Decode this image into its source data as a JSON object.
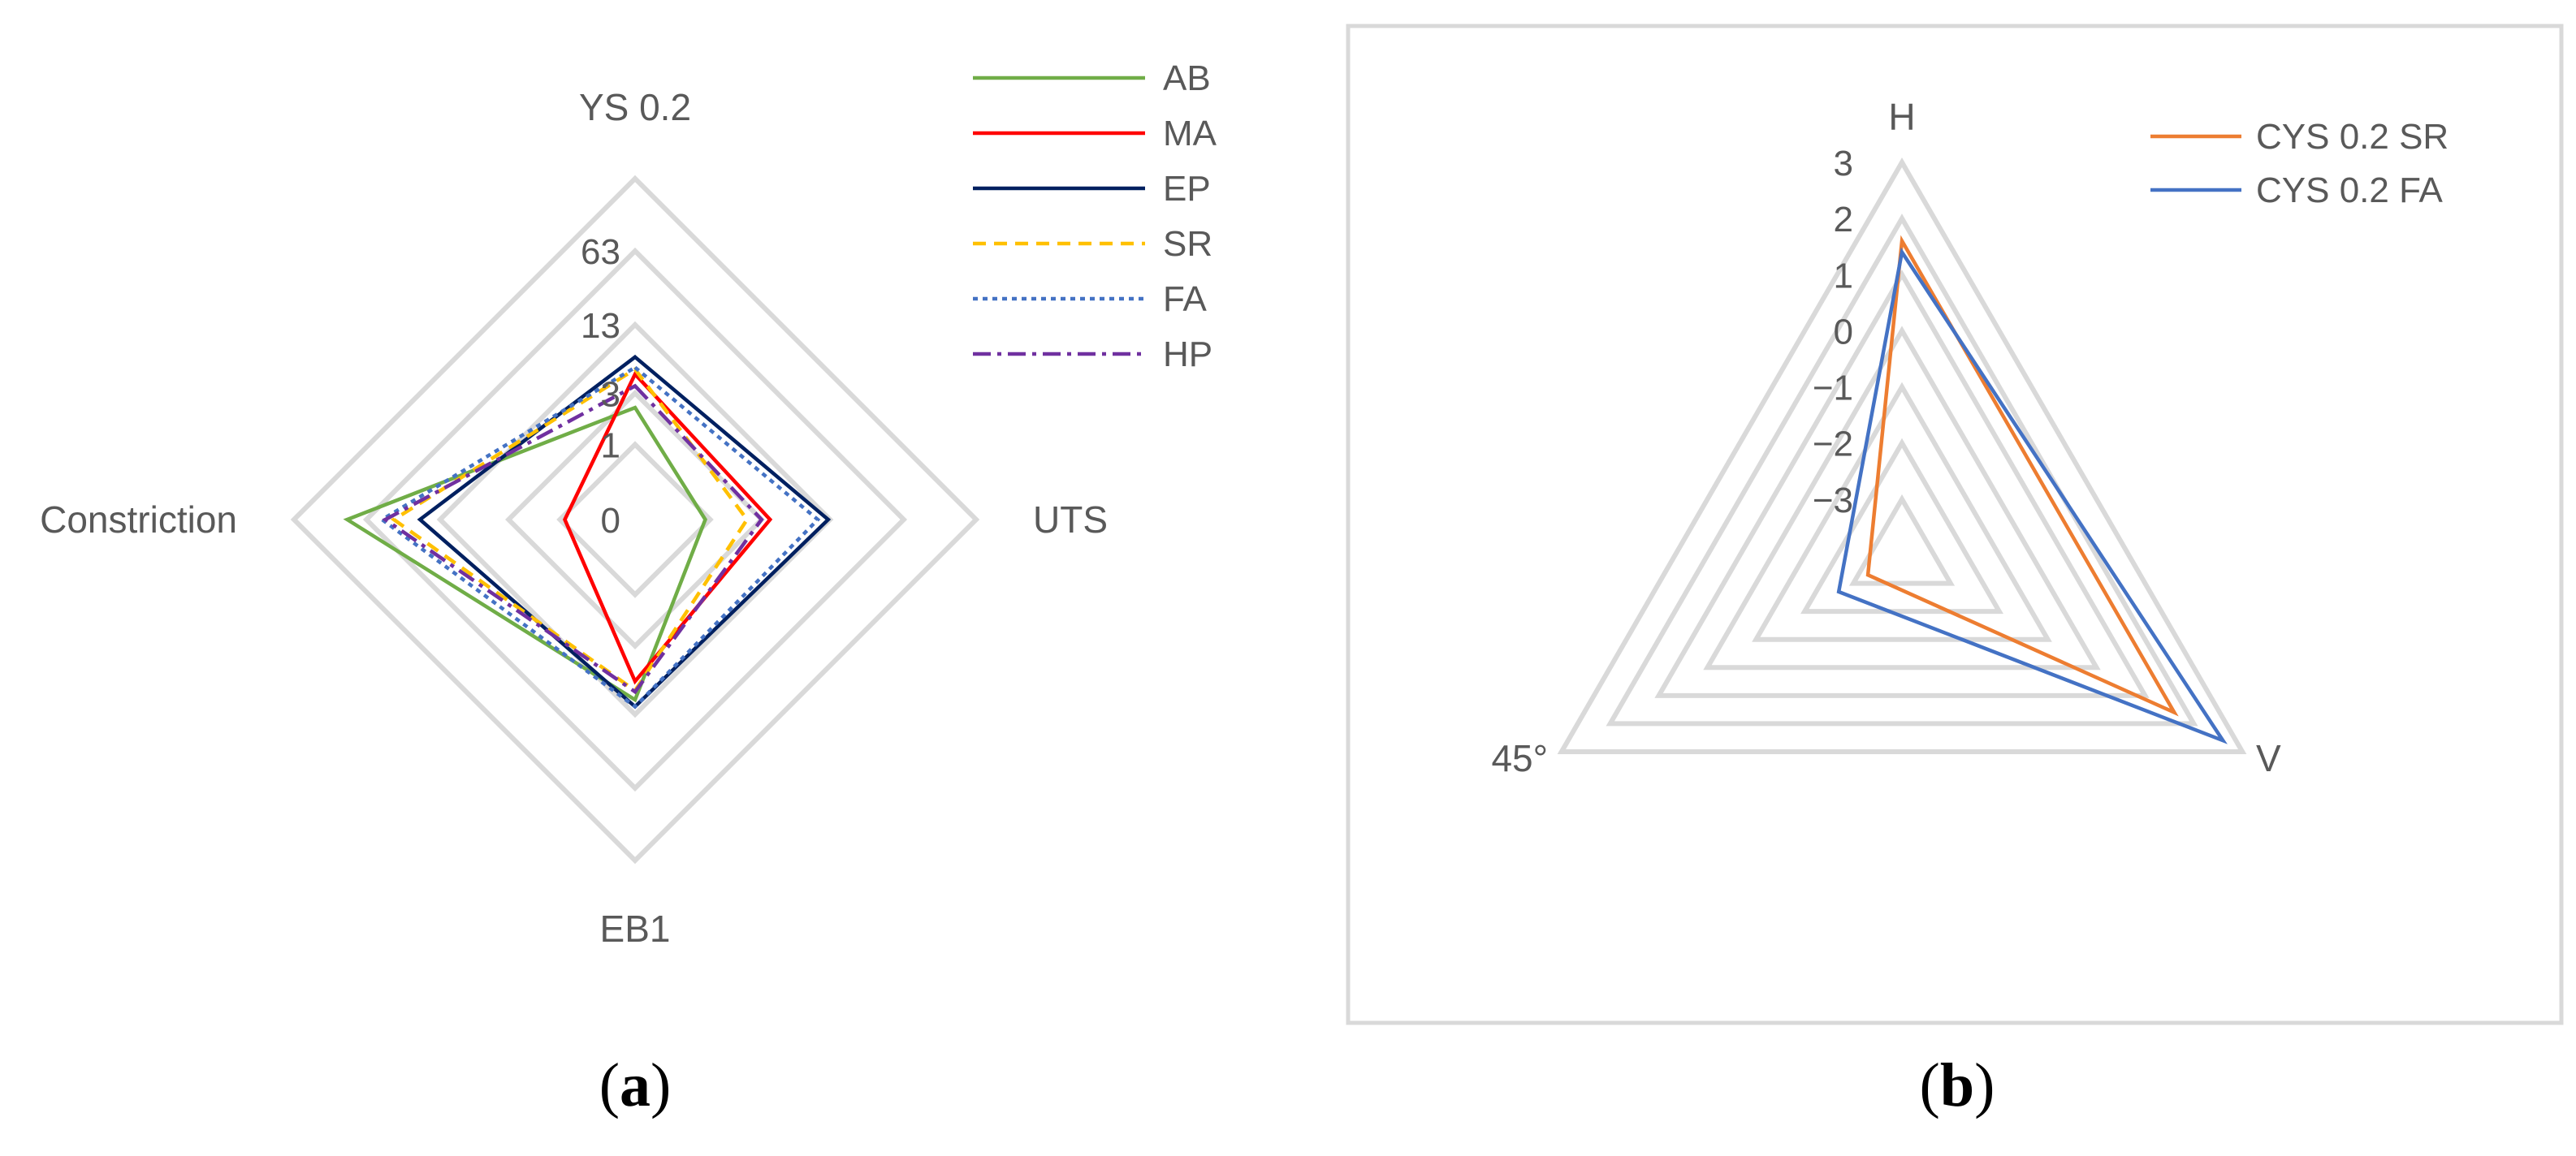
{
  "panel_a_label": [
    "(",
    "a",
    ")"
  ],
  "panel_b_label": [
    "(",
    "b",
    ")"
  ],
  "chart_data": [
    {
      "type": "radar",
      "axes": [
        "YS 0.2",
        "UTS",
        "EB1",
        "Constriction"
      ],
      "scale": "log",
      "tick_labels": [
        "0",
        "1",
        "3",
        "13",
        "63"
      ],
      "series": [
        {
          "name": "AB",
          "color": "#70ad47",
          "dash": "solid",
          "values": [
            2.2,
            0.9,
            9.5,
            95
          ]
        },
        {
          "name": "MA",
          "color": "#ff0000",
          "dash": "solid",
          "values": [
            4.5,
            3.6,
            6.4,
            0.9
          ]
        },
        {
          "name": "EP",
          "color": "#002060",
          "dash": "solid",
          "values": [
            6.5,
            12.5,
            11,
            20
          ]
        },
        {
          "name": "SR",
          "color": "#ffc000",
          "dash": "dash",
          "values": [
            5,
            2.2,
            7.8,
            35
          ]
        },
        {
          "name": "FA",
          "color": "#4472c4",
          "dash": "dot",
          "values": [
            5.2,
            10,
            11,
            45
          ]
        },
        {
          "name": "HP",
          "color": "#7030a0",
          "dash": "dashdot",
          "values": [
            3.5,
            3,
            8,
            42
          ]
        }
      ],
      "legend_position": "top-right"
    },
    {
      "type": "radar",
      "axes": [
        "H",
        "V",
        "45°"
      ],
      "tick_labels": [
        "3",
        "2",
        "1",
        "0",
        "−1",
        "−2",
        "−3"
      ],
      "range": [
        -4,
        3
      ],
      "series": [
        {
          "name": "CYS 0.2 SR",
          "color": "#ed7d31",
          "values": [
            1.6,
            1.6,
            -3.3
          ]
        },
        {
          "name": "CYS 0.2 FA",
          "color": "#4472c4",
          "values": [
            1.4,
            2.6,
            -2.7
          ]
        }
      ],
      "legend_position": "top-right"
    }
  ]
}
